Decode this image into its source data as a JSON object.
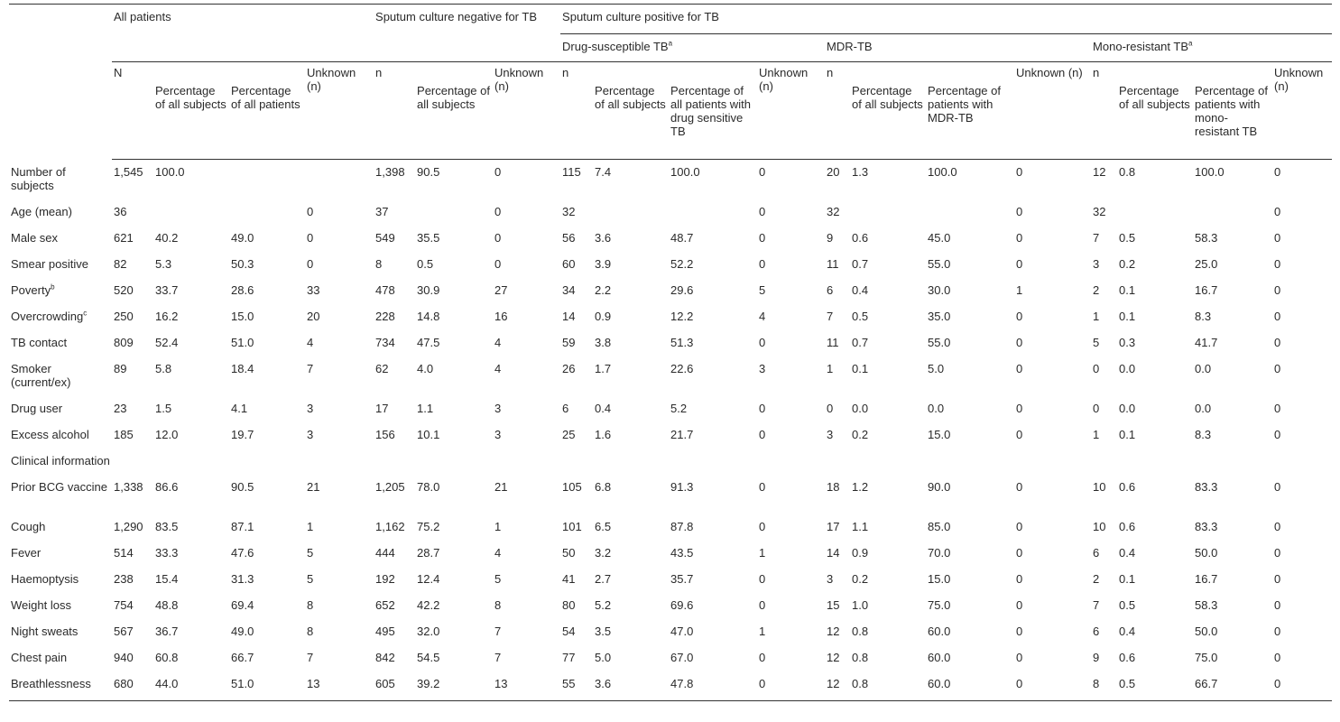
{
  "headers": {
    "row_label_header": "",
    "groups": {
      "all_patients": "All patients",
      "negative": "Sputum culture negative for TB",
      "positive": "Sputum culture positive for TB"
    },
    "subgroups": {
      "ds": "Drug-susceptible TB",
      "ds_sup": "a",
      "mdr": "MDR-TB",
      "mono": "Mono-resistant TB",
      "mono_sup": "a"
    },
    "columns": {
      "all_n": "N",
      "all_pct_subjects": "Percentage of all subjects",
      "all_pct_patients": "Percentage of all patients",
      "all_unknown": "Unknown (n)",
      "neg_n": "n",
      "neg_pct_subjects": "Percentage of all subjects",
      "neg_unknown": "Unknown (n)",
      "ds_n": "n",
      "ds_pct_subjects": "Percentage of all subjects",
      "ds_pct_patients": "Percentage of all patients with drug sensitive TB",
      "ds_unknown": "Unknown (n)",
      "mdr_n": "n",
      "mdr_pct_subjects": "Percentage of all subjects",
      "mdr_pct_patients": "Percentage of patients with MDR-TB",
      "mdr_unknown": "Unknown (n)",
      "mono_n": "n",
      "mono_pct_subjects": "Percentage of all subjects",
      "mono_pct_patients": "Percentage of patients with mono-resistant TB",
      "mono_unknown": "Unknown (n)"
    }
  },
  "rows": [
    {
      "label": "Number of subjects",
      "sup": "",
      "cells": [
        "1,545",
        "100.0",
        "",
        "",
        "1,398",
        "90.5",
        "0",
        "115",
        "7.4",
        "100.0",
        "0",
        "20",
        "1.3",
        "100.0",
        "0",
        "12",
        "0.8",
        "100.0",
        "0"
      ]
    },
    {
      "label": "Age (mean)",
      "sup": "",
      "cells": [
        "36",
        "",
        "",
        "0",
        "37",
        "",
        "0",
        "32",
        "",
        "",
        "0",
        "32",
        "",
        "",
        "0",
        "32",
        "",
        "",
        "0"
      ]
    },
    {
      "label": "Male sex",
      "sup": "",
      "cells": [
        "621",
        "40.2",
        "49.0",
        "0",
        "549",
        "35.5",
        "0",
        "56",
        "3.6",
        "48.7",
        "0",
        "9",
        "0.6",
        "45.0",
        "0",
        "7",
        "0.5",
        "58.3",
        "0"
      ]
    },
    {
      "label": "Smear positive",
      "sup": "",
      "cells": [
        "82",
        "5.3",
        "50.3",
        "0",
        "8",
        "0.5",
        "0",
        "60",
        "3.9",
        "52.2",
        "0",
        "11",
        "0.7",
        "55.0",
        "0",
        "3",
        "0.2",
        "25.0",
        "0"
      ]
    },
    {
      "label": "Poverty",
      "sup": "b",
      "cells": [
        "520",
        "33.7",
        "28.6",
        "33",
        "478",
        "30.9",
        "27",
        "34",
        "2.2",
        "29.6",
        "5",
        "6",
        "0.4",
        "30.0",
        "1",
        "2",
        "0.1",
        "16.7",
        "0"
      ]
    },
    {
      "label": "Overcrowding",
      "sup": "c",
      "cells": [
        "250",
        "16.2",
        "15.0",
        "20",
        "228",
        "14.8",
        "16",
        "14",
        "0.9",
        "12.2",
        "4",
        "7",
        "0.5",
        "35.0",
        "0",
        "1",
        "0.1",
        "8.3",
        "0"
      ]
    },
    {
      "label": "TB contact",
      "sup": "",
      "cells": [
        "809",
        "52.4",
        "51.0",
        "4",
        "734",
        "47.5",
        "4",
        "59",
        "3.8",
        "51.3",
        "0",
        "11",
        "0.7",
        "55.0",
        "0",
        "5",
        "0.3",
        "41.7",
        "0"
      ]
    },
    {
      "label": "Smoker (current/ex)",
      "sup": "",
      "cells": [
        "89",
        "5.8",
        "18.4",
        "7",
        "62",
        "4.0",
        "4",
        "26",
        "1.7",
        "22.6",
        "3",
        "1",
        "0.1",
        "5.0",
        "0",
        "0",
        "0.0",
        "0.0",
        "0"
      ]
    },
    {
      "label": "Drug user",
      "sup": "",
      "cells": [
        "23",
        "1.5",
        "4.1",
        "3",
        "17",
        "1.1",
        "3",
        "6",
        "0.4",
        "5.2",
        "0",
        "0",
        "0.0",
        "0.0",
        "0",
        "0",
        "0.0",
        "0.0",
        "0"
      ]
    },
    {
      "label": "Excess alcohol",
      "sup": "",
      "cells": [
        "185",
        "12.0",
        "19.7",
        "3",
        "156",
        "10.1",
        "3",
        "25",
        "1.6",
        "21.7",
        "0",
        "3",
        "0.2",
        "15.0",
        "0",
        "1",
        "0.1",
        "8.3",
        "0"
      ]
    },
    {
      "label": "Clinical information",
      "sup": "",
      "section": true,
      "cells": []
    },
    {
      "label": "Prior BCG vaccine",
      "sup": "",
      "cells": [
        "1,338",
        "86.6",
        "90.5",
        "21",
        "1,205",
        "78.0",
        "21",
        "105",
        "6.8",
        "91.3",
        "0",
        "18",
        "1.2",
        "90.0",
        "0",
        "10",
        "0.6",
        "83.3",
        "0"
      ]
    },
    {
      "label": "Cough",
      "sup": "",
      "cells": [
        "1,290",
        "83.5",
        "87.1",
        "1",
        "1,162",
        "75.2",
        "1",
        "101",
        "6.5",
        "87.8",
        "0",
        "17",
        "1.1",
        "85.0",
        "0",
        "10",
        "0.6",
        "83.3",
        "0"
      ]
    },
    {
      "label": "Fever",
      "sup": "",
      "cells": [
        "514",
        "33.3",
        "47.6",
        "5",
        "444",
        "28.7",
        "4",
        "50",
        "3.2",
        "43.5",
        "1",
        "14",
        "0.9",
        "70.0",
        "0",
        "6",
        "0.4",
        "50.0",
        "0"
      ]
    },
    {
      "label": "Haemoptysis",
      "sup": "",
      "cells": [
        "238",
        "15.4",
        "31.3",
        "5",
        "192",
        "12.4",
        "5",
        "41",
        "2.7",
        "35.7",
        "0",
        "3",
        "0.2",
        "15.0",
        "0",
        "2",
        "0.1",
        "16.7",
        "0"
      ]
    },
    {
      "label": "Weight loss",
      "sup": "",
      "cells": [
        "754",
        "48.8",
        "69.4",
        "8",
        "652",
        "42.2",
        "8",
        "80",
        "5.2",
        "69.6",
        "0",
        "15",
        "1.0",
        "75.0",
        "0",
        "7",
        "0.5",
        "58.3",
        "0"
      ]
    },
    {
      "label": "Night sweats",
      "sup": "",
      "cells": [
        "567",
        "36.7",
        "49.0",
        "8",
        "495",
        "32.0",
        "7",
        "54",
        "3.5",
        "47.0",
        "1",
        "12",
        "0.8",
        "60.0",
        "0",
        "6",
        "0.4",
        "50.0",
        "0"
      ]
    },
    {
      "label": "Chest pain",
      "sup": "",
      "cells": [
        "940",
        "60.8",
        "66.7",
        "7",
        "842",
        "54.5",
        "7",
        "77",
        "5.0",
        "67.0",
        "0",
        "12",
        "0.8",
        "60.0",
        "0",
        "9",
        "0.6",
        "75.0",
        "0"
      ]
    },
    {
      "label": "Breathlessness",
      "sup": "",
      "cells": [
        "680",
        "44.0",
        "51.0",
        "13",
        "605",
        "39.2",
        "13",
        "55",
        "3.6",
        "47.8",
        "0",
        "12",
        "0.8",
        "60.0",
        "0",
        "8",
        "0.5",
        "66.7",
        "0"
      ]
    }
  ]
}
